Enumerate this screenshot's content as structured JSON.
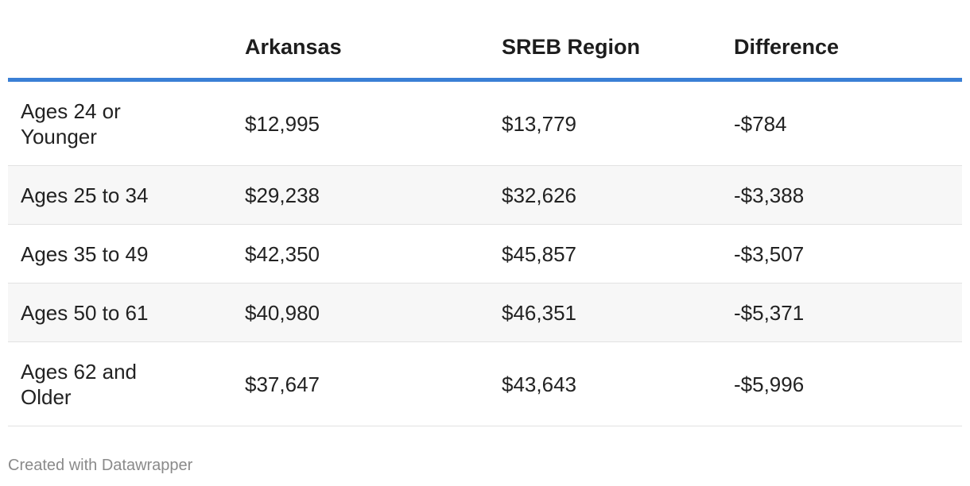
{
  "table": {
    "columns": [
      "Arkansas",
      "SREB Region",
      "Difference"
    ],
    "rows": [
      [
        "Ages 24 or Younger",
        "$12,995",
        "$13,779",
        "-$784"
      ],
      [
        "Ages 25 to 34",
        "$29,238",
        "$32,626",
        "-$3,388"
      ],
      [
        "Ages 35 to 49",
        "$42,350",
        "$45,857",
        "-$3,507"
      ],
      [
        "Ages 50 to 61",
        "$40,980",
        "$46,351",
        "-$5,371"
      ],
      [
        "Ages 62 and Older",
        "$37,647",
        "$43,643",
        "-$5,996"
      ]
    ]
  },
  "footer": "Created with Datawrapper"
}
